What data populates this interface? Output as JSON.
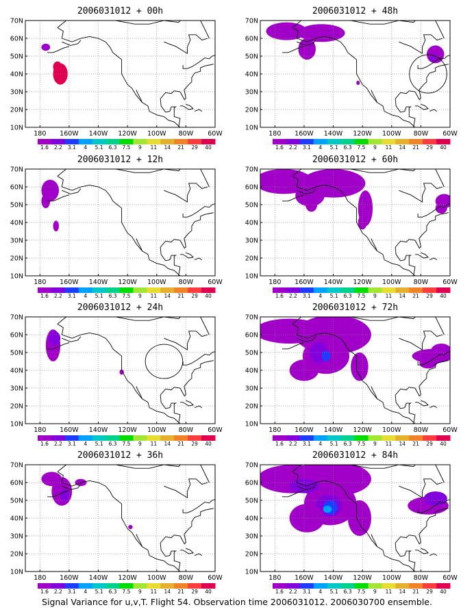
{
  "figure": {
    "caption": "Signal Variance for u,v,T. Flight 54. Observation time 2006031012. 2006030700 ensemble.",
    "panels": [
      {
        "title": "2006031012 + 00h",
        "level": 0
      },
      {
        "title": "2006031012 + 12h",
        "level": 1
      },
      {
        "title": "2006031012 + 24h",
        "level": 2
      },
      {
        "title": "2006031012 + 36h",
        "level": 3
      },
      {
        "title": "2006031012 + 48h",
        "level": 4
      },
      {
        "title": "2006031012 + 60h",
        "level": 5
      },
      {
        "title": "2006031012 + 72h",
        "level": 6
      },
      {
        "title": "2006031012 + 84h",
        "level": 7
      }
    ],
    "map": {
      "lon_range": [
        -190,
        -60
      ],
      "lat_range": [
        10,
        70
      ],
      "lon_ticks": [
        {
          "value": -180,
          "label": "180"
        },
        {
          "value": -160,
          "label": "160W"
        },
        {
          "value": -140,
          "label": "140W"
        },
        {
          "value": -120,
          "label": "120W"
        },
        {
          "value": -100,
          "label": "100W"
        },
        {
          "value": -80,
          "label": "80W"
        },
        {
          "value": -60,
          "label": "60W"
        }
      ],
      "lat_ticks": [
        {
          "value": 10,
          "label": "10N"
        },
        {
          "value": 20,
          "label": "20N"
        },
        {
          "value": 30,
          "label": "30N"
        },
        {
          "value": 40,
          "label": "40N"
        },
        {
          "value": 50,
          "label": "50N"
        },
        {
          "value": 60,
          "label": "60N"
        },
        {
          "value": 70,
          "label": "70N"
        }
      ],
      "grid": "dotted"
    },
    "colorbar": {
      "labels": [
        "1.6",
        "2.2",
        "3.1",
        "4",
        "5.1",
        "6.3",
        "7.5",
        "9",
        "11",
        "14",
        "21",
        "29",
        "40"
      ],
      "colors": [
        "#a000c8",
        "#8200dc",
        "#1e3cff",
        "#00a0ff",
        "#00c8c8",
        "#00d28c",
        "#00dc00",
        "#a0e632",
        "#e6dc32",
        "#e6af2d",
        "#f08228",
        "#fa3c3c",
        "#e00050"
      ]
    }
  }
}
